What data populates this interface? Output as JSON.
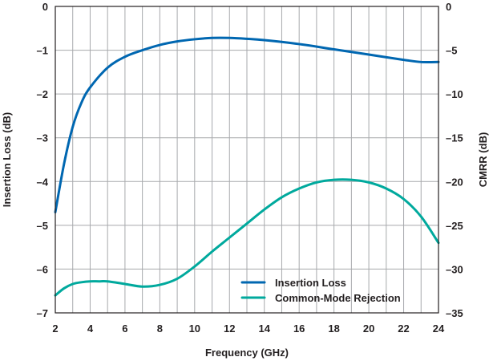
{
  "chart_data": {
    "type": "line",
    "xlabel": "Frequency (GHz)",
    "ylabel_left": "Insertion Loss (dB)",
    "ylabel_right": "CMRR (dB)",
    "xlim": [
      2,
      24
    ],
    "ylim_left": [
      -7,
      0
    ],
    "ylim_right": [
      -35,
      0
    ],
    "x_ticks": [
      2,
      4,
      6,
      8,
      10,
      12,
      14,
      16,
      18,
      20,
      22,
      24
    ],
    "y_ticks_left": [
      0,
      -1,
      -2,
      -3,
      -4,
      -5,
      -6,
      -7
    ],
    "y_tick_labels_left": [
      "0",
      "–1",
      "–2",
      "–3",
      "–4",
      "–5",
      "–6",
      "–7"
    ],
    "y_ticks_right": [
      0,
      -5,
      -10,
      -15,
      -20,
      -25,
      -30,
      -35
    ],
    "y_tick_labels_right": [
      "0",
      "–5",
      "–10",
      "–15",
      "–20",
      "–25",
      "–30",
      "–35"
    ],
    "x_minor_step": 1,
    "grid": true,
    "legend_position": "bottom-right",
    "series": [
      {
        "name": "Insertion Loss",
        "axis": "left",
        "color": "#0067b1",
        "x": [
          2,
          2.5,
          3,
          3.5,
          4,
          5,
          6,
          7,
          8,
          9,
          10,
          11,
          12,
          13,
          14,
          16,
          18,
          20,
          22,
          23,
          24
        ],
        "y": [
          -4.7,
          -3.6,
          -2.75,
          -2.2,
          -1.85,
          -1.4,
          -1.15,
          -1.0,
          -0.88,
          -0.8,
          -0.75,
          -0.72,
          -0.72,
          -0.74,
          -0.77,
          -0.86,
          -0.98,
          -1.1,
          -1.22,
          -1.27,
          -1.27
        ]
      },
      {
        "name": "Common-Mode Rejection",
        "axis": "right",
        "color": "#00a99d",
        "x": [
          2,
          2.5,
          3,
          3.5,
          4,
          4.5,
          5,
          6,
          7,
          8,
          9,
          10,
          11,
          12,
          13,
          14,
          15,
          16,
          17,
          18,
          19,
          20,
          21,
          22,
          23,
          24
        ],
        "y": [
          -33.0,
          -32.2,
          -31.7,
          -31.5,
          -31.4,
          -31.4,
          -31.4,
          -31.7,
          -32.0,
          -31.8,
          -31.1,
          -29.7,
          -28.0,
          -26.4,
          -24.8,
          -23.2,
          -21.8,
          -20.8,
          -20.1,
          -19.8,
          -19.8,
          -20.1,
          -20.8,
          -22.0,
          -24.0,
          -27.0
        ]
      }
    ]
  }
}
